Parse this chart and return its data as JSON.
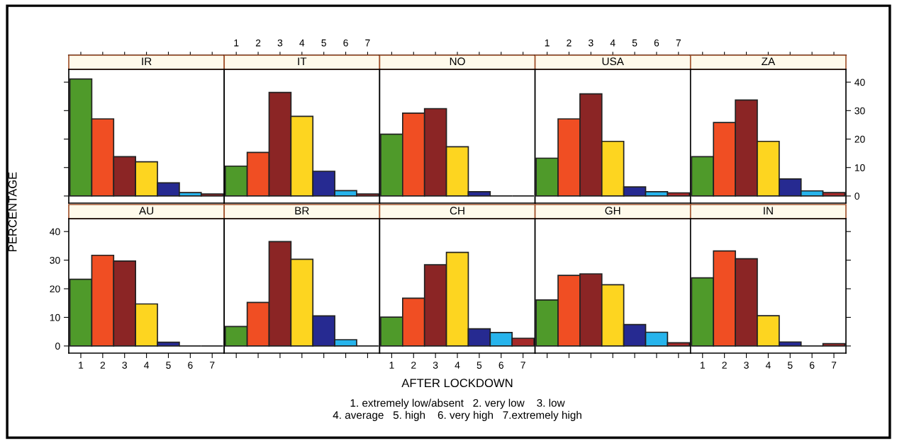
{
  "chart_data": [
    {
      "type": "bar",
      "title": "IR",
      "categories": [
        "1",
        "2",
        "3",
        "4",
        "5",
        "6",
        "7"
      ],
      "values": [
        41.1,
        27.1,
        13.8,
        12.0,
        4.6,
        1.2,
        0.7
      ],
      "colors": [
        "#4f9a2a",
        "#f04e23",
        "#8b2525",
        "#fdd520",
        "#262a91",
        "#27b4ec",
        "#a52a2a"
      ],
      "ylim": [
        -2.5,
        44.5
      ],
      "yticks": [
        0,
        10,
        20,
        30,
        40
      ],
      "tick_labels": false
    },
    {
      "type": "bar",
      "title": "IT",
      "categories": [
        "1",
        "2",
        "3",
        "4",
        "5",
        "6",
        "7"
      ],
      "values": [
        10.5,
        15.3,
        36.4,
        28.0,
        8.7,
        1.9,
        0.7
      ],
      "colors": [
        "#4f9a2a",
        "#f04e23",
        "#8b2525",
        "#fdd520",
        "#262a91",
        "#27b4ec",
        "#a52a2a"
      ],
      "ylim": [
        -2.5,
        44.5
      ],
      "yticks": [
        0,
        10,
        20,
        30,
        40
      ],
      "tick_labels": "x"
    },
    {
      "type": "bar",
      "title": "NO",
      "categories": [
        "1",
        "2",
        "3",
        "4",
        "5",
        "6",
        "7"
      ],
      "values": [
        21.7,
        29.1,
        30.7,
        17.3,
        1.5,
        0,
        0
      ],
      "colors": [
        "#4f9a2a",
        "#f04e23",
        "#8b2525",
        "#fdd520",
        "#262a91",
        "#222222",
        "#222222"
      ],
      "ylim": [
        -2.5,
        44.5
      ],
      "yticks": [
        0,
        10,
        20,
        30,
        40
      ],
      "tick_labels": false
    },
    {
      "type": "bar",
      "title": "USA",
      "categories": [
        "1",
        "2",
        "3",
        "4",
        "5",
        "6",
        "7"
      ],
      "values": [
        13.3,
        27.1,
        35.9,
        19.2,
        3.2,
        1.5,
        1.1
      ],
      "colors": [
        "#4f9a2a",
        "#f04e23",
        "#8b2525",
        "#fdd520",
        "#262a91",
        "#27b4ec",
        "#a52a2a"
      ],
      "ylim": [
        -2.5,
        44.5
      ],
      "yticks": [
        0,
        10,
        20,
        30,
        40
      ],
      "tick_labels": "x"
    },
    {
      "type": "bar",
      "title": "ZA",
      "categories": [
        "1",
        "2",
        "3",
        "4",
        "5",
        "6",
        "7"
      ],
      "values": [
        13.8,
        25.8,
        33.7,
        19.2,
        6.0,
        1.8,
        1.2
      ],
      "colors": [
        "#4f9a2a",
        "#f04e23",
        "#8b2525",
        "#fdd520",
        "#262a91",
        "#27b4ec",
        "#a52a2a"
      ],
      "ylim": [
        -2.5,
        44.5
      ],
      "yticks": [
        0,
        10,
        20,
        30,
        40
      ],
      "tick_labels": "y"
    },
    {
      "type": "bar",
      "title": "AU",
      "ylabel": "PERCENTAGE",
      "categories": [
        "1",
        "2",
        "3",
        "4",
        "5",
        "6",
        "7"
      ],
      "values": [
        23.3,
        31.7,
        29.7,
        14.7,
        1.3,
        0,
        0
      ],
      "colors": [
        "#4f9a2a",
        "#f04e23",
        "#8b2525",
        "#fdd520",
        "#262a91",
        "#222222",
        "#222222"
      ],
      "ylim": [
        -2.5,
        44.5
      ],
      "yticks": [
        0,
        10,
        20,
        30,
        40
      ]
    },
    {
      "type": "bar",
      "title": "BR",
      "categories": [
        "1",
        "2",
        "3",
        "4",
        "5",
        "6",
        "7"
      ],
      "values": [
        6.8,
        15.2,
        36.5,
        30.3,
        10.5,
        2.2,
        0
      ],
      "colors": [
        "#4f9a2a",
        "#f04e23",
        "#8b2525",
        "#fdd520",
        "#262a91",
        "#27b4ec",
        "#222222"
      ],
      "ylim": [
        -2.5,
        44.5
      ],
      "yticks": [
        0,
        10,
        20,
        30,
        40
      ],
      "tick_labels": false
    },
    {
      "type": "bar",
      "title": "CH",
      "xlabel": "AFTER LOCKDOWN",
      "annotations": [
        "1. extremely low/absent   2. very low    3. low",
        "4. average   5. high    6. very high   7.extremely high"
      ],
      "categories": [
        "1",
        "2",
        "3",
        "4",
        "5",
        "6",
        "7"
      ],
      "values": [
        10.1,
        16.7,
        28.4,
        32.7,
        6.0,
        4.7,
        2.7
      ],
      "colors": [
        "#4f9a2a",
        "#f04e23",
        "#8b2525",
        "#fdd520",
        "#262a91",
        "#27b4ec",
        "#a52a2a"
      ],
      "ylim": [
        -2.5,
        44.5
      ],
      "yticks": [
        0,
        10,
        20,
        30,
        40
      ],
      "tick_labels": "x"
    },
    {
      "type": "bar",
      "title": "GH",
      "categories": [
        "1",
        "2",
        "3",
        "4",
        "5",
        "6",
        "7"
      ],
      "values": [
        16.1,
        24.7,
        25.2,
        21.4,
        7.5,
        4.8,
        1.1
      ],
      "colors": [
        "#4f9a2a",
        "#f04e23",
        "#8b2525",
        "#fdd520",
        "#262a91",
        "#27b4ec",
        "#a52a2a"
      ],
      "ylim": [
        -2.5,
        44.5
      ],
      "yticks": [
        0,
        10,
        20,
        30,
        40
      ],
      "tick_labels": false
    },
    {
      "type": "bar",
      "title": "IN",
      "categories": [
        "1",
        "2",
        "3",
        "4",
        "5",
        "6",
        "7"
      ],
      "values": [
        23.8,
        33.2,
        30.5,
        10.6,
        1.4,
        0,
        0.8
      ],
      "colors": [
        "#4f9a2a",
        "#f04e23",
        "#8b2525",
        "#fdd520",
        "#262a91",
        "#222222",
        "#a52a2a"
      ],
      "ylim": [
        -2.5,
        44.5
      ],
      "yticks": [
        0,
        10,
        20,
        30,
        40
      ],
      "tick_labels": "x"
    }
  ]
}
